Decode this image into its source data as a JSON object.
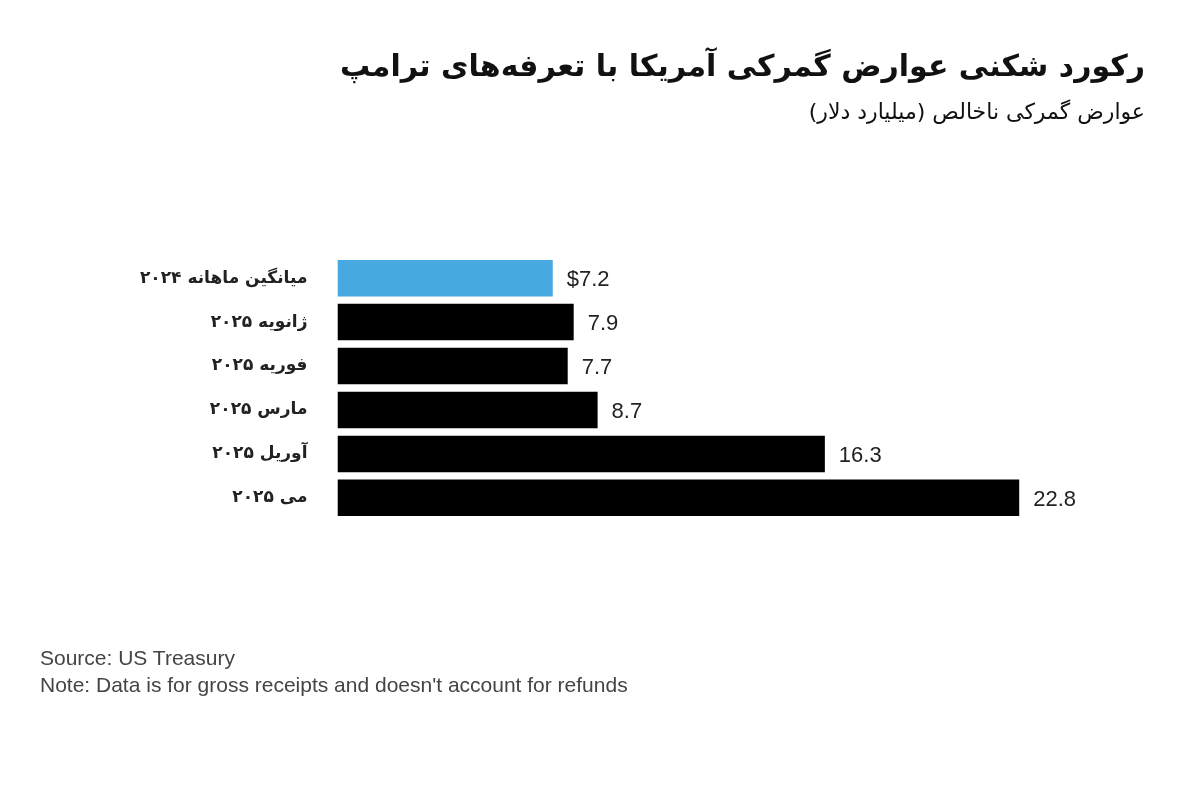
{
  "chart_data": {
    "type": "bar",
    "orientation": "horizontal",
    "title": "رکورد شکنی عوارض گمرکی آمریکا با تعرفه‌های ترامپ",
    "subtitle": "عوارض گمرکی ناخالص (میلیارد دلار)",
    "categories": [
      "میانگین ماهانه ۲۰۲۴",
      "ژانویه ۲۰۲۵",
      "فوریه ۲۰۲۵",
      "مارس ۲۰۲۵",
      "آوریل ۲۰۲۵",
      "می ۲۰۲۵"
    ],
    "values": [
      7.2,
      7.9,
      7.7,
      8.7,
      16.3,
      22.8
    ],
    "colors": [
      "#48a8e0",
      "#000000",
      "#000000",
      "#000000",
      "#000000",
      "#000000"
    ],
    "value_labels": [
      "$7.2",
      "7.9",
      "7.7",
      "8.7",
      "16.3",
      "22.8"
    ],
    "legend": false,
    "annotations": [
      "Source: US Treasury",
      "Note: Data is for gross receipts and doesn't account for refunds"
    ]
  }
}
